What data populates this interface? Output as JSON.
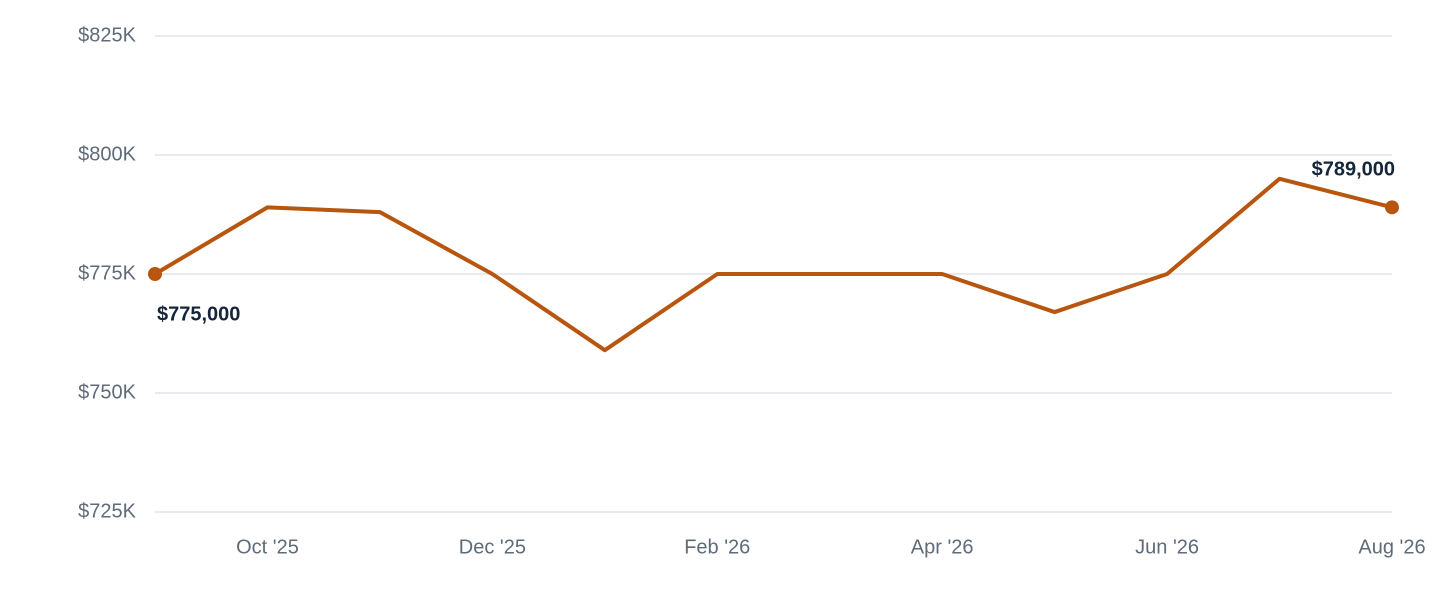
{
  "chart_data": {
    "type": "line",
    "categories": [
      null,
      "Oct '25",
      null,
      "Dec '25",
      null,
      "Feb '26",
      null,
      "Apr '26",
      null,
      "Jun '26",
      null,
      "Aug '26"
    ],
    "series": [
      {
        "color": "#b8560f",
        "values": [
          775000,
          789000,
          788000,
          775000,
          759000,
          775000,
          775000,
          775000,
          767000,
          775000,
          795000,
          789000
        ],
        "value_labels": [
          "$775,000",
          null,
          null,
          null,
          null,
          null,
          null,
          null,
          null,
          null,
          null,
          "$789,000"
        ]
      }
    ],
    "ylim": [
      725000,
      825000
    ],
    "yticks": [
      {
        "value": 725000,
        "label": "$725K"
      },
      {
        "value": 750000,
        "label": "$750K"
      },
      {
        "value": 775000,
        "label": "$775K"
      },
      {
        "value": 800000,
        "label": "$800K"
      },
      {
        "value": 825000,
        "label": "$825K"
      }
    ],
    "grid": true
  }
}
